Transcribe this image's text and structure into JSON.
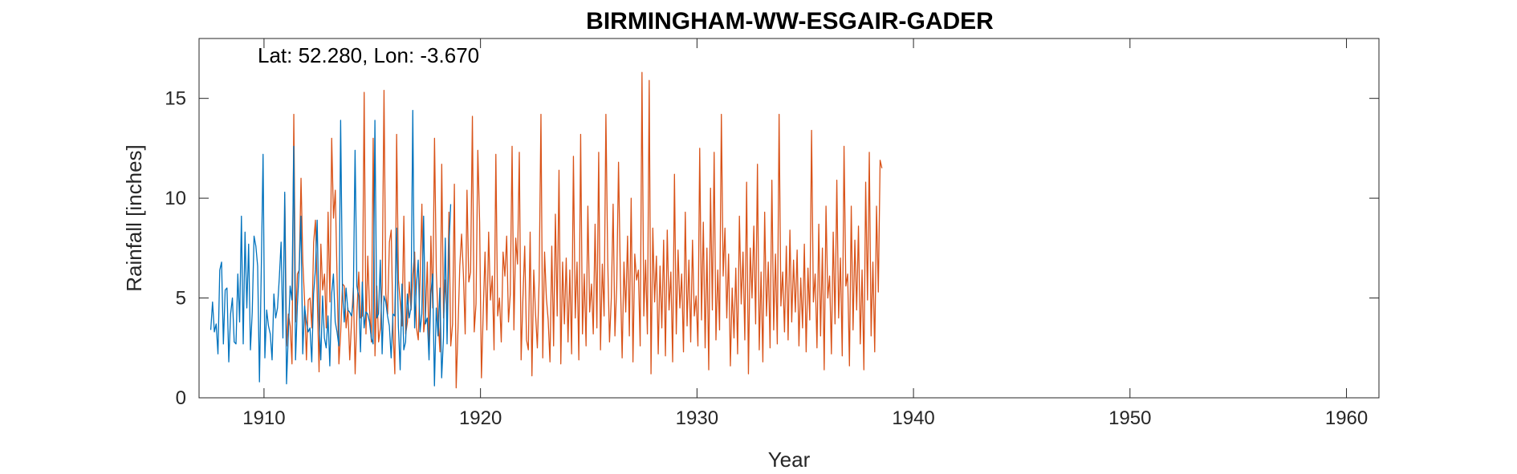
{
  "chart_data": {
    "type": "line",
    "title": "BIRMINGHAM-WW-ESGAIR-GADER",
    "xlabel": "Year",
    "ylabel": "Rainfall [inches]",
    "annotation": "Lat: 52.280, Lon: -3.670",
    "xlim": [
      1907.0,
      1961.5
    ],
    "ylim": [
      0,
      18
    ],
    "xticks": [
      1910,
      1920,
      1930,
      1940,
      1950,
      1960
    ],
    "yticks": [
      0,
      5,
      10,
      15
    ],
    "grid": false,
    "colors": {
      "series_a": "#0072BD",
      "series_b": "#D95319"
    },
    "series": [
      {
        "x_start": 1907.54,
        "x_step": 0.08333,
        "values": [
          3.4,
          4.8,
          3.3,
          3.7,
          2.2,
          6.4,
          6.8,
          2.7,
          5.4,
          5.5,
          1.8,
          4.2,
          5.0,
          2.8,
          2.7,
          6.2,
          3.8,
          9.1,
          2.7,
          8.3,
          4.5,
          7.7,
          2.4,
          4.3,
          8.1,
          7.6,
          6.6,
          0.8,
          6.4,
          12.2,
          2.0,
          4.4,
          3.6,
          3.2,
          1.9,
          5.2,
          4.0,
          4.5,
          6.0,
          7.8,
          3.0,
          10.3,
          0.7,
          3.2,
          5.6,
          4.9,
          12.6,
          1.9,
          4.6,
          6.4,
          9.1,
          2.2,
          4.6,
          3.8,
          3.3,
          3.5,
          1.8,
          5.2,
          6.4,
          8.9,
          3.9,
          1.9,
          5.1,
          3.0,
          2.5,
          4.1,
          1.6,
          5.2,
          6.2,
          3.8,
          3.3,
          2.6,
          13.9,
          5.4,
          3.8,
          5.5,
          4.4,
          4.3,
          4.1,
          4.8,
          12.4,
          5.6,
          5.1,
          2.3,
          5.8,
          3.5,
          4.3,
          4.2,
          3.8,
          3.0,
          2.7,
          13.9,
          4.0,
          4.2,
          6.9,
          2.2,
          5.1,
          4.8,
          4.1,
          3.6,
          2.0,
          4.2,
          4.1,
          8.5,
          3.6,
          1.4,
          5.7,
          2.4,
          2.8,
          5.2,
          4.0,
          4.5,
          14.4,
          3.5,
          5.6,
          6.9,
          3.3,
          4.2,
          9.1,
          3.7,
          4.0,
          1.9,
          5.2,
          6.2,
          0.6,
          4.5,
          3.1,
          5.5,
          1.0,
          3.0,
          8.0,
          2.7,
          7.5,
          9.7
        ]
      },
      {
        "x_start": 1910.96,
        "x_step": 0.08333,
        "values": [
          10.2,
          2.6,
          4.2,
          3.6,
          1.7,
          14.2,
          3.8,
          6.2,
          6.4,
          11.0,
          6.8,
          4.8,
          1.9,
          4.9,
          5.0,
          3.5,
          7.8,
          8.9,
          5.0,
          1.3,
          7.7,
          5.4,
          6.2,
          3.5,
          9.3,
          4.8,
          13.0,
          9.0,
          10.4,
          5.9,
          1.7,
          3.3,
          5.7,
          5.6,
          3.5,
          4.5,
          1.9,
          3.8,
          5.5,
          1.2,
          4.3,
          6.3,
          4.0,
          4.1,
          15.3,
          3.2,
          7.1,
          4.4,
          2.8,
          13.0,
          2.1,
          5.6,
          2.8,
          3.5,
          5.6,
          15.4,
          5.2,
          4.2,
          7.8,
          8.4,
          3.4,
          1.2,
          13.2,
          5.9,
          4.8,
          3.6,
          9.1,
          3.2,
          3.8,
          5.8,
          4.4,
          6.2,
          7.3,
          3.5,
          2.9,
          6.0,
          9.7,
          3.3,
          4.1,
          6.8,
          2.2,
          8.1,
          4.5,
          13.0,
          6.3,
          3.9,
          2.3,
          11.7,
          4.0,
          5.9,
          3.8,
          9.3,
          2.6,
          3.7,
          10.7,
          0.5,
          3.4,
          6.6,
          8.2,
          6.2,
          3.2,
          10.4,
          5.8,
          6.3,
          14.1,
          3.3,
          4.7,
          12.4,
          8.8,
          1.0,
          4.3,
          7.3,
          3.4,
          8.3,
          4.9,
          6.1,
          2.4,
          12.2,
          4.1,
          5.0,
          2.8,
          7.3,
          6.1,
          8.1,
          3.8,
          5.2,
          12.6,
          3.4,
          8.0,
          6.7,
          12.3,
          1.9,
          5.0,
          7.6,
          2.9,
          2.4,
          8.3,
          1.1,
          6.4,
          4.2,
          2.5,
          5.9,
          14.2,
          2.0,
          7.3,
          5.0,
          3.9,
          1.8,
          7.6,
          2.6,
          9.2,
          4.1,
          11.4,
          1.7,
          6.8,
          3.7,
          7.0,
          2.8,
          6.4,
          2.2,
          12.1,
          4.0,
          6.8,
          1.9,
          13.2,
          3.2,
          6.2,
          2.6,
          9.6,
          4.3,
          5.7,
          3.2,
          8.7,
          3.5,
          12.3,
          2.4,
          6.7,
          4.1,
          14.2,
          6.9,
          2.8,
          5.0,
          9.7,
          3.1,
          5.6,
          11.8,
          6.1,
          2.0,
          6.8,
          4.3,
          8.1,
          3.1,
          10.0,
          1.8,
          7.2,
          5.9,
          6.4,
          2.6,
          16.3,
          4.1,
          6.9,
          3.2,
          15.9,
          1.2,
          8.5,
          4.8,
          7.1,
          2.2,
          6.6,
          3.5,
          7.9,
          2.1,
          8.4,
          4.4,
          6.3,
          1.8,
          11.2,
          3.2,
          7.4,
          4.5,
          6.2,
          2.3,
          9.3,
          3.6,
          6.9,
          2.8,
          7.9,
          4.1,
          5.1,
          2.6,
          12.5,
          3.9,
          8.8,
          2.5,
          7.5,
          1.4,
          10.5,
          4.4,
          12.3,
          2.9,
          6.4,
          3.4,
          14.2,
          6.1,
          8.5,
          4.0,
          7.2,
          1.6,
          5.5,
          3.0,
          6.5,
          2.2,
          9.1,
          4.7,
          7.3,
          2.9,
          10.8,
          1.2,
          7.5,
          5.0,
          8.6,
          3.7,
          11.7,
          2.4,
          6.3,
          1.8,
          9.3,
          4.1,
          6.8,
          2.5,
          10.9,
          3.4,
          7.2,
          2.7,
          14.2,
          4.6,
          6.3,
          3.3,
          7.6,
          2.9,
          8.4,
          3.8,
          6.9,
          4.3,
          7.4,
          2.6,
          6.0,
          3.5,
          7.7,
          2.3,
          6.5,
          3.9,
          13.4,
          4.8,
          6.2,
          2.5,
          8.7,
          3.1,
          7.5,
          1.4,
          9.6,
          5.0,
          6.1,
          2.2,
          8.3,
          3.7,
          10.9,
          4.0,
          7.0,
          2.1,
          12.6,
          5.6,
          6.2,
          1.6,
          9.6,
          3.4,
          7.9,
          4.4,
          8.6,
          2.7,
          6.4,
          1.4,
          10.8,
          4.9,
          12.3,
          3.1,
          6.8,
          2.3,
          9.6,
          5.3,
          11.9,
          11.5
        ]
      }
    ]
  }
}
